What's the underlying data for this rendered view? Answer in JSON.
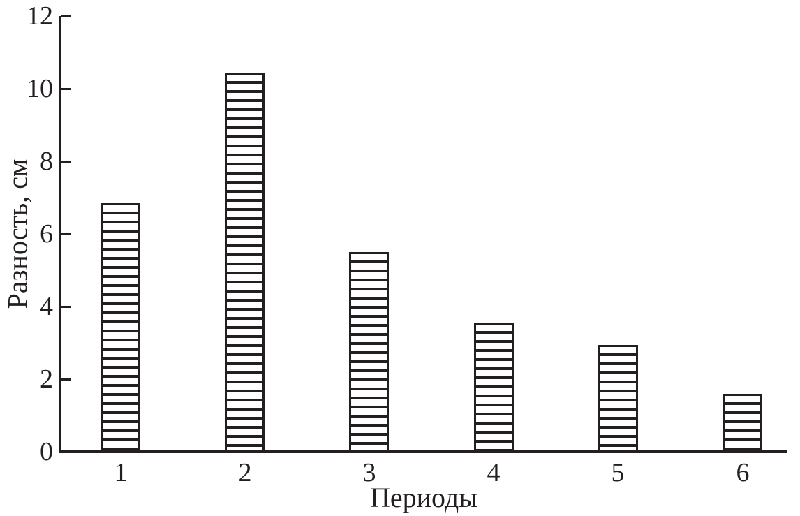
{
  "chart_data": {
    "type": "bar",
    "categories": [
      "1",
      "2",
      "3",
      "4",
      "5",
      "6"
    ],
    "values": [
      6.85,
      10.45,
      5.5,
      3.55,
      2.95,
      1.6
    ],
    "title": "",
    "xlabel": "Периоды",
    "ylabel": "Разность, см",
    "ylim": [
      0,
      12
    ],
    "yticks": [
      0,
      2,
      4,
      6,
      8,
      10,
      12
    ],
    "grid": false,
    "legend": "none",
    "bar_fill": "#ffffff",
    "bar_hatch": "horizontal-lines",
    "ink_color": "#231f20"
  }
}
